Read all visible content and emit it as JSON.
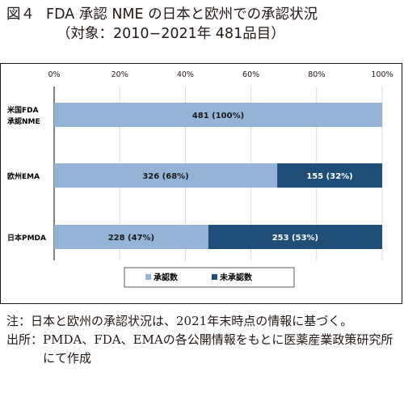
{
  "figure": {
    "label": "図４",
    "title": "FDA 承認 NME の日本と欧州での承認状況",
    "subtitle": "（対象：2010−2021年 481品目）"
  },
  "chart_data": {
    "type": "bar",
    "orientation": "horizontal",
    "stacked": true,
    "x_unit": "percent",
    "xlim": [
      0,
      100
    ],
    "x_ticks": [
      "0%",
      "20%",
      "40%",
      "60%",
      "80%",
      "100%"
    ],
    "grid": true,
    "legend_position": "bottom",
    "categories": [
      [
        "米国FDA",
        "承認NME"
      ],
      [
        "欧州EMA"
      ],
      [
        "日本PMDA"
      ]
    ],
    "series": [
      {
        "name": "承認数",
        "color": "#95b3d7",
        "values": [
          100,
          68,
          47
        ],
        "labels": [
          "481 (100%)",
          "326 (68%)",
          "228 (47%)"
        ]
      },
      {
        "name": "未承認数",
        "color": "#1f4e79",
        "values": [
          0,
          32,
          53
        ],
        "labels": [
          "",
          "155 (32%)",
          "253 (53%)"
        ]
      }
    ]
  },
  "notes": [
    {
      "label": "注：",
      "text": "日本と欧州の承認状況は、2021年末時点の情報に基づく。"
    },
    {
      "label": "出所：",
      "text": "PMDA、FDA、EMAの各公開情報をもとに医薬産業政策研究所にて作成"
    }
  ]
}
